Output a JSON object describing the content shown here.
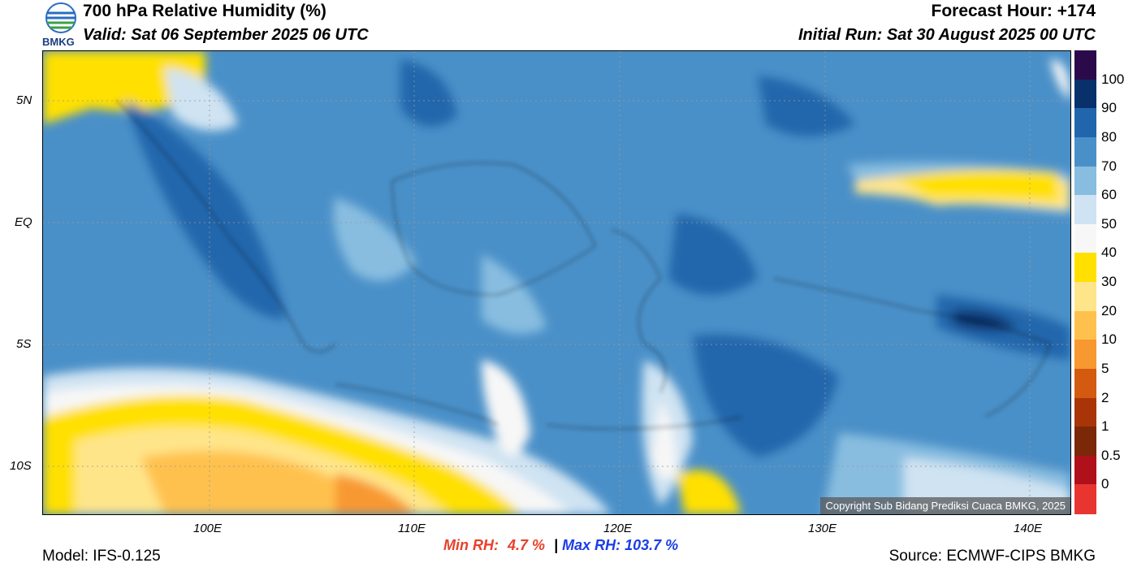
{
  "header": {
    "title": "700 hPa Relative Humidity (%)",
    "valid": "Valid: Sat 06 September 2025 06 UTC",
    "forecast_hour": "Forecast Hour: +174",
    "initial_run": "Initial Run: Sat 30 August 2025 00 UTC",
    "logo_text": "BMKG"
  },
  "axes": {
    "lat_labels": [
      "5N",
      "EQ",
      "5S",
      "10S"
    ],
    "lon_labels": [
      "100E",
      "110E",
      "120E",
      "130E",
      "140E"
    ]
  },
  "colorbar": {
    "labels": [
      "100",
      "90",
      "80",
      "70",
      "60",
      "50",
      "40",
      "30",
      "20",
      "10",
      "5",
      "2",
      "1",
      "0.5",
      "0"
    ],
    "colors": [
      "#2a0a4a",
      "#08306b",
      "#2166ac",
      "#4a90c8",
      "#88bde0",
      "#cfe3f2",
      "#f7f7f7",
      "#ffe000",
      "#ffe58a",
      "#ffc14d",
      "#f89830",
      "#d45a10",
      "#a83408",
      "#7a2808",
      "#b0101a",
      "#e83530"
    ]
  },
  "stats": {
    "min_label": "Min RH:",
    "min_value": "4.7 %",
    "separator": "|",
    "max_label": "Max RH:",
    "max_value": "103.7 %",
    "min_color": "#e8402a",
    "max_color": "#1a3ee8"
  },
  "footer": {
    "model": "Model: IFS-0.125",
    "source": "Source: ECMWF-CIPS BMKG",
    "copyright": "Copyright Sub Bidang Prediksi Cuaca BMKG, 2025"
  }
}
